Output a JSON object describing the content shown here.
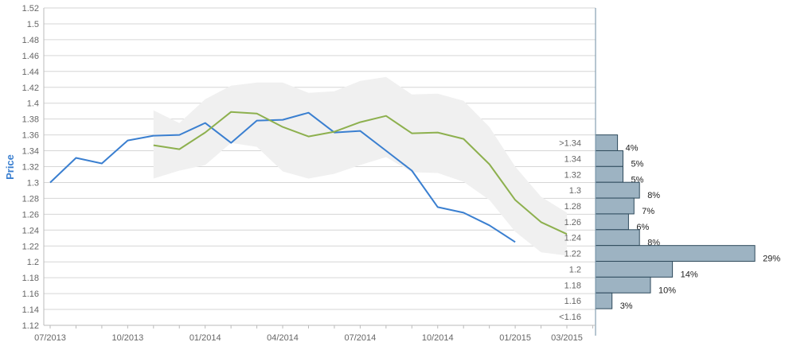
{
  "chart_data": {
    "type": "line",
    "ylabel": "Price",
    "ylim": [
      1.12,
      1.52
    ],
    "y_ticks": [
      "1.12",
      "1.14",
      "1.16",
      "1.18",
      "1.2",
      "1.22",
      "1.24",
      "1.26",
      "1.28",
      "1.3",
      "1.32",
      "1.34",
      "1.36",
      "1.38",
      "1.4",
      "1.42",
      "1.44",
      "1.46",
      "1.48",
      "1.5",
      "1.52"
    ],
    "x_ticks": [
      "07/2013",
      "10/2013",
      "01/2014",
      "04/2014",
      "07/2014",
      "10/2014",
      "01/2015",
      "03/2015"
    ],
    "grid": true,
    "colors": {
      "actual": "#3a7fd0",
      "forecast": "#8db04e",
      "band": "#f0f0f0",
      "histogram": "#9db3c2",
      "histogram_edge": "#2e4a5c",
      "ylabel": "#3a7fd0",
      "grid": "#d6d6d6"
    },
    "series": [
      {
        "key": "actual",
        "x": [
          "07/2013",
          "08/2013",
          "09/2013",
          "10/2013",
          "11/2013",
          "12/2013",
          "01/2014",
          "02/2014",
          "03/2014",
          "04/2014",
          "05/2014",
          "06/2014",
          "07/2014",
          "08/2014",
          "09/2014",
          "10/2014",
          "11/2014",
          "12/2014",
          "01/2015"
        ],
        "y": [
          1.3,
          1.331,
          1.324,
          1.353,
          1.359,
          1.36,
          1.375,
          1.35,
          1.378,
          1.379,
          1.388,
          1.363,
          1.365,
          1.34,
          1.315,
          1.269,
          1.262,
          1.246,
          1.225
        ]
      },
      {
        "key": "forecast",
        "x": [
          "11/2013",
          "12/2013",
          "01/2014",
          "02/2014",
          "03/2014",
          "04/2014",
          "05/2014",
          "06/2014",
          "07/2014",
          "08/2014",
          "09/2014",
          "10/2014",
          "11/2014",
          "12/2014",
          "01/2015",
          "02/2015",
          "03/2015"
        ],
        "y": [
          1.347,
          1.342,
          1.363,
          1.389,
          1.387,
          1.37,
          1.358,
          1.364,
          1.376,
          1.384,
          1.362,
          1.363,
          1.355,
          1.323,
          1.278,
          1.25,
          1.235
        ]
      }
    ],
    "band": {
      "x": [
        "11/2013",
        "12/2013",
        "01/2014",
        "02/2014",
        "03/2014",
        "04/2014",
        "05/2014",
        "06/2014",
        "07/2014",
        "08/2014",
        "09/2014",
        "10/2014",
        "11/2014",
        "12/2014",
        "01/2015",
        "02/2015",
        "03/2015"
      ],
      "upper": [
        1.391,
        1.375,
        1.405,
        1.422,
        1.426,
        1.426,
        1.413,
        1.415,
        1.428,
        1.433,
        1.411,
        1.412,
        1.403,
        1.37,
        1.32,
        1.282,
        1.262
      ],
      "lower": [
        1.305,
        1.315,
        1.322,
        1.35,
        1.345,
        1.314,
        1.305,
        1.311,
        1.322,
        1.332,
        1.313,
        1.312,
        1.301,
        1.278,
        1.238,
        1.212,
        1.208
      ]
    },
    "histogram": {
      "bins": [
        {
          "label": ">1.34",
          "value": 4,
          "display": "4%"
        },
        {
          "label": "1.34",
          "value": 5,
          "display": "5%"
        },
        {
          "label": "1.32",
          "value": 5,
          "display": "5%"
        },
        {
          "label": "1.3",
          "value": 8,
          "display": "8%"
        },
        {
          "label": "1.28",
          "value": 7,
          "display": "7%"
        },
        {
          "label": "1.26",
          "value": 6,
          "display": "6%"
        },
        {
          "label": "1.24",
          "value": 8,
          "display": "8%"
        },
        {
          "label": "1.22",
          "value": 29,
          "display": "29%"
        },
        {
          "label": "1.2",
          "value": 14,
          "display": "14%"
        },
        {
          "label": "1.18",
          "value": 10,
          "display": "10%"
        },
        {
          "label": "1.16",
          "value": 3,
          "display": "3%"
        },
        {
          "label": "<1.16",
          "value": 0,
          "display": ""
        }
      ]
    }
  }
}
